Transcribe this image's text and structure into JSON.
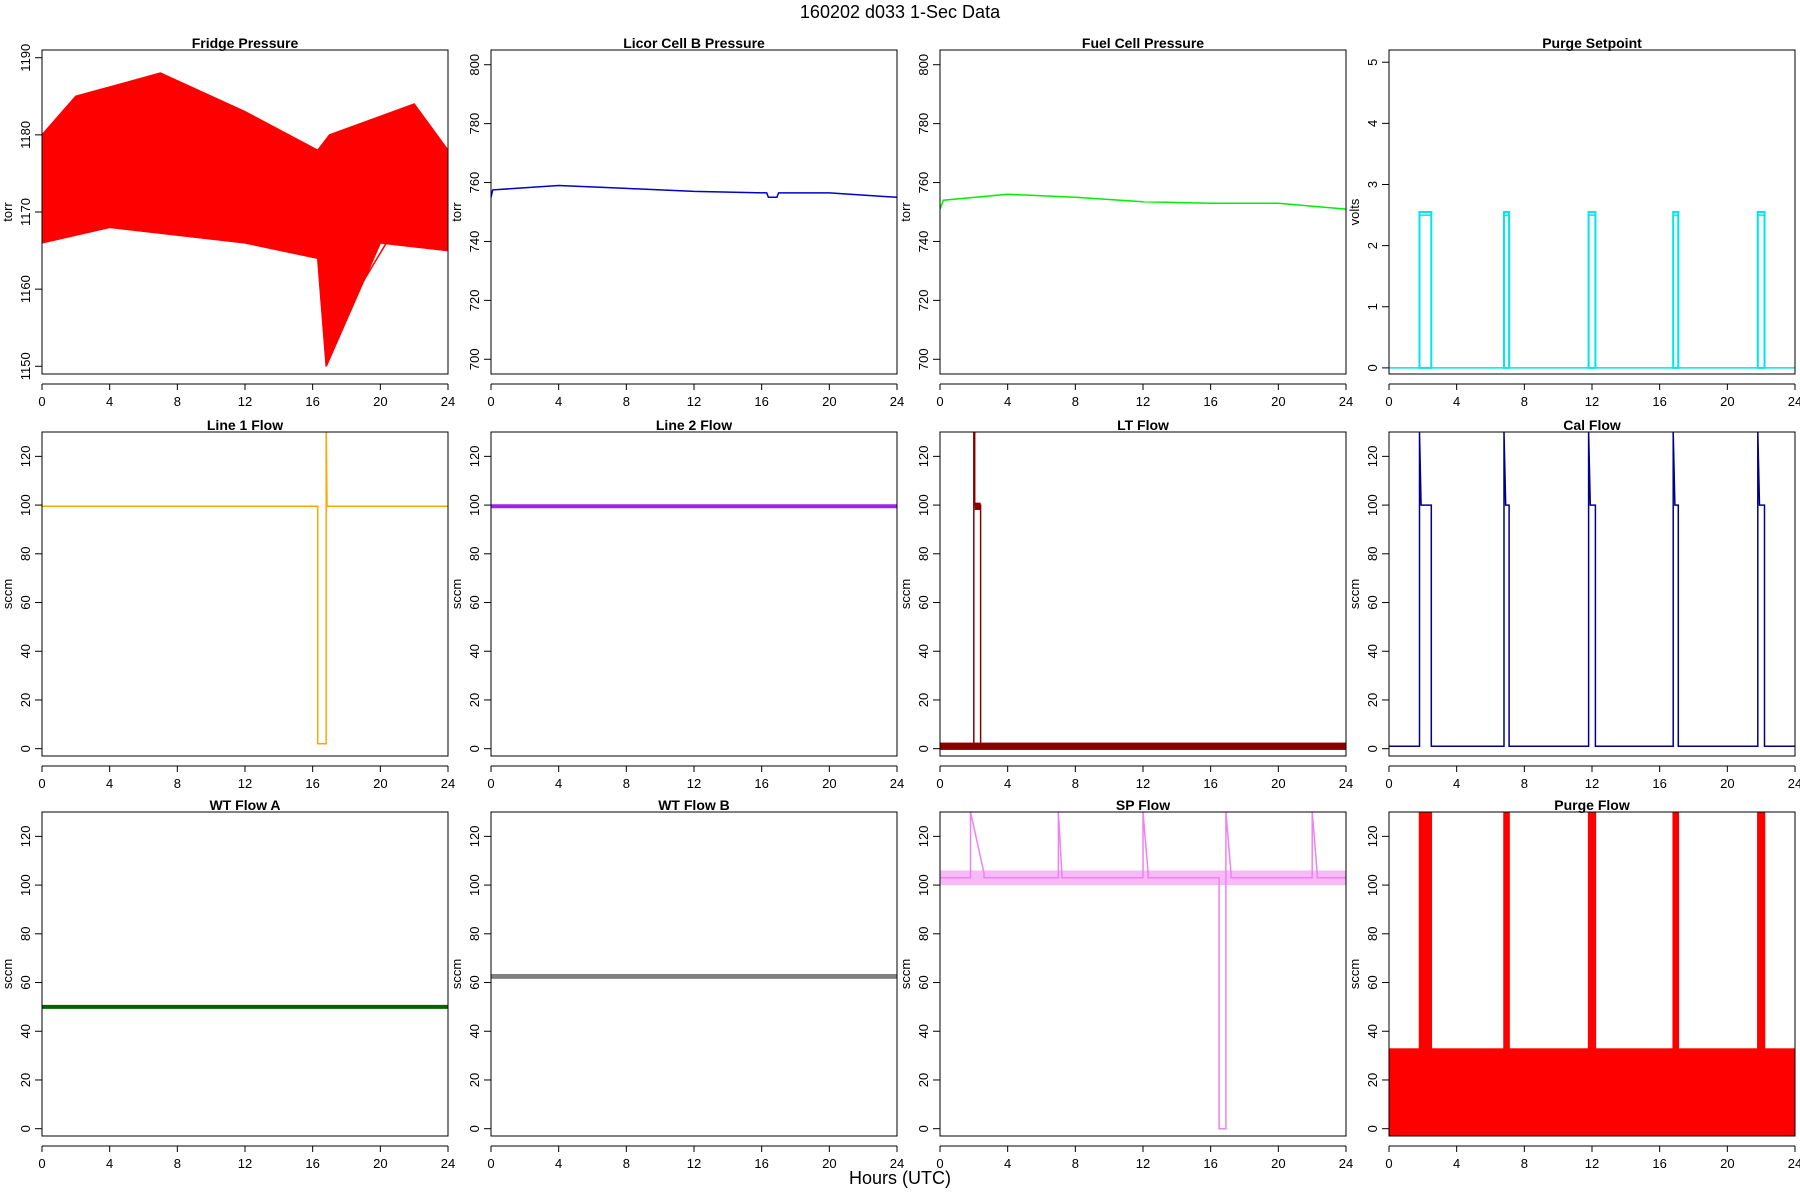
{
  "page": {
    "title": "160202    d033    1-Sec Data",
    "xlabel": "Hours (UTC)"
  },
  "chart_data": [
    {
      "type": "line",
      "title": "Fridge Pressure",
      "ylabel": "torr",
      "color": "#ff0000",
      "xlim": [
        0,
        24
      ],
      "ylim": [
        1149,
        1191
      ],
      "yticks": [
        1150,
        1160,
        1170,
        1180,
        1190
      ],
      "xticks": [
        0,
        4,
        8,
        12,
        16,
        20,
        24
      ],
      "series": [
        {
          "x": [
            0,
            2,
            7,
            11.9,
            16.3,
            16.8,
            22,
            24
          ],
          "y": [
            1173,
            1174,
            1175,
            1173,
            1172,
            1153,
            1172,
            1170
          ]
        },
        {
          "x": [
            0,
            4,
            8,
            12,
            16.3,
            16.8,
            20,
            24
          ],
          "y": [
            1166,
            1168,
            1167,
            1166,
            1164,
            1150,
            1166,
            1165
          ]
        },
        {
          "x": [
            0,
            2,
            7,
            12,
            16.3,
            17,
            22,
            24
          ],
          "y": [
            1180,
            1185,
            1188,
            1183,
            1178,
            1180,
            1184,
            1178
          ]
        }
      ]
    },
    {
      "type": "line",
      "title": "Licor Cell B Pressure",
      "ylabel": "torr",
      "color": "#0000cc",
      "xlim": [
        0,
        24
      ],
      "ylim": [
        695,
        805
      ],
      "yticks": [
        700,
        720,
        740,
        760,
        780,
        800
      ],
      "xticks": [
        0,
        4,
        8,
        12,
        16,
        20,
        24
      ],
      "series": [
        {
          "x": [
            0,
            0.1,
            4,
            8,
            12,
            16.3,
            16.4,
            16.9,
            17,
            20,
            24
          ],
          "y": [
            755,
            757.5,
            759,
            758,
            757,
            756.5,
            755,
            755,
            756.5,
            756.5,
            755
          ]
        }
      ]
    },
    {
      "type": "line",
      "title": "Fuel Cell Pressure",
      "ylabel": "torr",
      "color": "#00ee00",
      "xlim": [
        0,
        24
      ],
      "ylim": [
        695,
        805
      ],
      "yticks": [
        700,
        720,
        740,
        760,
        780,
        800
      ],
      "xticks": [
        0,
        4,
        8,
        12,
        16,
        20,
        24
      ],
      "series": [
        {
          "x": [
            0,
            0.2,
            4,
            8,
            12,
            16,
            20,
            24
          ],
          "y": [
            751,
            754,
            756,
            755,
            753.5,
            753,
            753,
            751
          ]
        }
      ]
    },
    {
      "type": "line",
      "title": "Purge Setpoint",
      "ylabel": "volts",
      "color": "#00e5ee",
      "xlim": [
        0,
        24
      ],
      "ylim": [
        -0.1,
        5.2
      ],
      "yticks": [
        0,
        1,
        2,
        3,
        4,
        5
      ],
      "xticks": [
        0,
        4,
        8,
        12,
        16,
        20,
        24
      ],
      "pulses": [
        [
          1.8,
          2.5
        ],
        [
          6.8,
          7.1
        ],
        [
          11.8,
          12.2
        ],
        [
          16.8,
          17.1
        ],
        [
          21.8,
          22.2
        ]
      ],
      "series": [
        {
          "x": [
            0,
            1.8,
            1.8,
            2.5,
            2.5,
            6.8,
            6.8,
            7.1,
            7.1,
            11.8,
            11.8,
            12.2,
            12.2,
            16.8,
            16.8,
            17.1,
            17.1,
            21.8,
            21.8,
            22.2,
            22.2,
            24
          ],
          "y": [
            0,
            0,
            2.5,
            2.5,
            0,
            0,
            2.5,
            2.5,
            0,
            0,
            2.5,
            2.5,
            0,
            0,
            2.5,
            2.5,
            0,
            0,
            2.5,
            2.5,
            0,
            0
          ]
        }
      ]
    },
    {
      "type": "line",
      "title": "Line 1 Flow",
      "ylabel": "sccm",
      "color": "#ffa500",
      "xlim": [
        0,
        24
      ],
      "ylim": [
        -3,
        130
      ],
      "yticks": [
        0,
        20,
        40,
        60,
        80,
        100,
        120
      ],
      "xticks": [
        0,
        4,
        8,
        12,
        16,
        20,
        24
      ],
      "series": [
        {
          "x": [
            0,
            16.3,
            16.3,
            16.8,
            16.8,
            16.85,
            24
          ],
          "y": [
            99.5,
            99.5,
            2,
            2,
            130,
            99.5,
            99.5
          ]
        }
      ]
    },
    {
      "type": "line",
      "title": "Line 2 Flow",
      "ylabel": "sccm",
      "color": "#a020f0",
      "xlim": [
        0,
        24
      ],
      "ylim": [
        -3,
        130
      ],
      "yticks": [
        0,
        20,
        40,
        60,
        80,
        100,
        120
      ],
      "xticks": [
        0,
        4,
        8,
        12,
        16,
        20,
        24
      ],
      "series": [
        {
          "x": [
            0,
            24
          ],
          "y": [
            99.5,
            99.5
          ]
        }
      ]
    },
    {
      "type": "line",
      "title": "LT Flow",
      "ylabel": "sccm",
      "color": "#8b0000",
      "xlim": [
        0,
        24
      ],
      "ylim": [
        -3,
        130
      ],
      "yticks": [
        0,
        20,
        40,
        60,
        80,
        100,
        120
      ],
      "xticks": [
        0,
        4,
        8,
        12,
        16,
        20,
        24
      ],
      "series": [
        {
          "x": [
            0,
            2,
            2,
            2.05,
            2.05,
            2.4,
            2.4,
            24
          ],
          "y": [
            1,
            1,
            130,
            130,
            100,
            100,
            1,
            1
          ]
        }
      ]
    },
    {
      "type": "line",
      "title": "Cal Flow",
      "ylabel": "sccm",
      "color": "#00008b",
      "xlim": [
        0,
        24
      ],
      "ylim": [
        -3,
        130
      ],
      "yticks": [
        0,
        20,
        40,
        60,
        80,
        100,
        120
      ],
      "xticks": [
        0,
        4,
        8,
        12,
        16,
        20,
        24
      ],
      "pulses": [
        [
          1.8,
          2.5
        ],
        [
          6.8,
          7.1
        ],
        [
          11.8,
          12.2
        ],
        [
          16.8,
          17.1
        ],
        [
          21.8,
          22.2
        ]
      ],
      "series": [
        {
          "x": [
            0,
            1.8,
            1.8,
            1.9,
            2.5,
            2.5,
            6.8,
            6.8,
            6.9,
            7.1,
            7.1,
            11.8,
            11.8,
            11.9,
            12.2,
            12.2,
            16.8,
            16.8,
            16.9,
            17.1,
            17.1,
            21.8,
            21.8,
            21.9,
            22.2,
            22.2,
            24
          ],
          "y": [
            1,
            1,
            130,
            100,
            100,
            1,
            1,
            130,
            100,
            100,
            1,
            1,
            130,
            100,
            100,
            1,
            1,
            130,
            100,
            100,
            1,
            1,
            130,
            100,
            100,
            1,
            1
          ]
        }
      ]
    },
    {
      "type": "line",
      "title": "WT Flow A",
      "ylabel": "sccm",
      "color": "#006400",
      "xlim": [
        0,
        24
      ],
      "ylim": [
        -3,
        130
      ],
      "yticks": [
        0,
        20,
        40,
        60,
        80,
        100,
        120
      ],
      "xticks": [
        0,
        4,
        8,
        12,
        16,
        20,
        24
      ],
      "series": [
        {
          "x": [
            0,
            24
          ],
          "y": [
            50,
            50
          ]
        }
      ]
    },
    {
      "type": "line",
      "title": "WT Flow B",
      "ylabel": "sccm",
      "color": "#808080",
      "xlim": [
        0,
        24
      ],
      "ylim": [
        -3,
        130
      ],
      "yticks": [
        0,
        20,
        40,
        60,
        80,
        100,
        120
      ],
      "xticks": [
        0,
        4,
        8,
        12,
        16,
        20,
        24
      ],
      "series": [
        {
          "x": [
            0,
            24
          ],
          "y": [
            62.5,
            62.5
          ]
        }
      ]
    },
    {
      "type": "line",
      "title": "SP Flow",
      "ylabel": "sccm",
      "color": "#ee82ee",
      "xlim": [
        0,
        24
      ],
      "ylim": [
        -3,
        130
      ],
      "yticks": [
        0,
        20,
        40,
        60,
        80,
        100,
        120
      ],
      "xticks": [
        0,
        4,
        8,
        12,
        16,
        20,
        24
      ],
      "series": [
        {
          "x": [
            0,
            1.8,
            1.8,
            2.6,
            2.6,
            7,
            7,
            7.2,
            7.2,
            12,
            12,
            12.3,
            12.3,
            16.5,
            16.5,
            16.9,
            16.9,
            17.2,
            17.2,
            22,
            22,
            22.3,
            22.3,
            24
          ],
          "y": [
            103,
            103,
            130,
            105,
            103,
            103,
            130,
            105,
            103,
            103,
            130,
            105,
            103,
            103,
            0,
            0,
            130,
            105,
            103,
            103,
            130,
            105,
            103,
            103
          ]
        }
      ]
    },
    {
      "type": "line",
      "title": "Purge Flow",
      "ylabel": "sccm",
      "color": "#ff0000",
      "xlim": [
        0,
        24
      ],
      "ylim": [
        -3,
        130
      ],
      "yticks": [
        0,
        20,
        40,
        60,
        80,
        100,
        120
      ],
      "xticks": [
        0,
        4,
        8,
        12,
        16,
        20,
        24
      ],
      "pulses": [
        [
          1.8,
          2.5
        ],
        [
          6.8,
          7.1
        ],
        [
          11.8,
          12.2
        ],
        [
          16.8,
          17.1
        ],
        [
          21.8,
          22.2
        ]
      ],
      "series": [
        {
          "x": [
            0,
            1.8,
            1.8,
            2.5,
            2.5,
            6.8,
            6.8,
            7.1,
            7.1,
            11.8,
            11.8,
            12.2,
            12.2,
            16.8,
            16.8,
            17.1,
            17.1,
            21.8,
            21.8,
            22.2,
            22.2,
            24
          ],
          "y": [
            30,
            30,
            130,
            130,
            30,
            30,
            130,
            130,
            30,
            30,
            130,
            130,
            30,
            30,
            130,
            130,
            30,
            30,
            130,
            130,
            30,
            30
          ]
        },
        {
          "x": [
            0,
            24
          ],
          "y": [
            -3,
            -3
          ]
        }
      ]
    }
  ]
}
